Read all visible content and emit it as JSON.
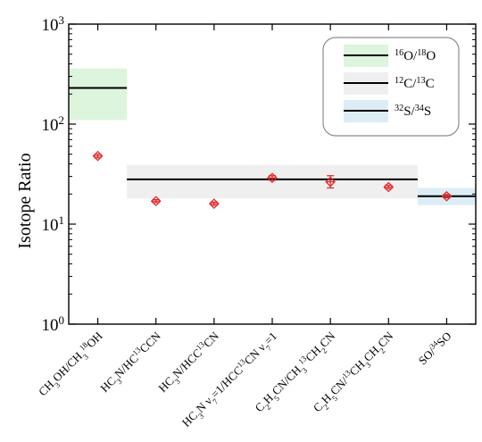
{
  "chart_data": {
    "type": "scatter",
    "title": "",
    "ylabel": "Isotope Ratio",
    "xlabel": "",
    "yscale": "log",
    "ylim": [
      1,
      1000
    ],
    "yticks": [
      {
        "value": 1,
        "base": "10",
        "exp": "0"
      },
      {
        "value": 10,
        "base": "10",
        "exp": "1"
      },
      {
        "value": 100,
        "base": "10",
        "exp": "2"
      },
      {
        "value": 1000,
        "base": "10",
        "exp": "3"
      }
    ],
    "categories": [
      [
        {
          "t": "CH"
        },
        {
          "t": "3",
          "s": "sub"
        },
        {
          "t": "OH/CH"
        },
        {
          "t": "3",
          "s": "sub"
        },
        {
          "t": "18",
          "s": "sup"
        },
        {
          "t": "OH"
        }
      ],
      [
        {
          "t": "HC"
        },
        {
          "t": "3",
          "s": "sub"
        },
        {
          "t": "N/HC"
        },
        {
          "t": "13",
          "s": "sup"
        },
        {
          "t": "CCN"
        }
      ],
      [
        {
          "t": "HC"
        },
        {
          "t": "3",
          "s": "sub"
        },
        {
          "t": "N/HCC"
        },
        {
          "t": "13",
          "s": "sup"
        },
        {
          "t": "CN"
        }
      ],
      [
        {
          "t": "HC"
        },
        {
          "t": "3",
          "s": "sub"
        },
        {
          "t": "N ν"
        },
        {
          "t": "7",
          "s": "sub"
        },
        {
          "t": "=1/HCC"
        },
        {
          "t": "13",
          "s": "sup"
        },
        {
          "t": "CN ν"
        },
        {
          "t": "7",
          "s": "sub"
        },
        {
          "t": "=1"
        }
      ],
      [
        {
          "t": "C"
        },
        {
          "t": "2",
          "s": "sub"
        },
        {
          "t": "H"
        },
        {
          "t": "5",
          "s": "sub"
        },
        {
          "t": "CN/CH"
        },
        {
          "t": "3",
          "s": "sub"
        },
        {
          "t": "13",
          "s": "sup"
        },
        {
          "t": "CH"
        },
        {
          "t": "2",
          "s": "sub"
        },
        {
          "t": "CN"
        }
      ],
      [
        {
          "t": "C"
        },
        {
          "t": "2",
          "s": "sub"
        },
        {
          "t": "H"
        },
        {
          "t": "5",
          "s": "sub"
        },
        {
          "t": "CN/"
        },
        {
          "t": "13",
          "s": "sup"
        },
        {
          "t": "CH"
        },
        {
          "t": "3",
          "s": "sub"
        },
        {
          "t": "CH"
        },
        {
          "t": "2",
          "s": "sub"
        },
        {
          "t": "CN"
        }
      ],
      [
        {
          "t": "SO/"
        },
        {
          "t": "34",
          "s": "sup"
        },
        {
          "t": "SO"
        }
      ]
    ],
    "points": [
      {
        "x": 0,
        "y": 48,
        "err": [
          46,
          50
        ]
      },
      {
        "x": 1,
        "y": 17,
        "err": [
          16.4,
          17.6
        ]
      },
      {
        "x": 2,
        "y": 16,
        "err": [
          15.4,
          16.6
        ]
      },
      {
        "x": 3,
        "y": 29,
        "err": [
          27.5,
          30.5
        ]
      },
      {
        "x": 4,
        "y": 26.5,
        "err": [
          23,
          30.5
        ]
      },
      {
        "x": 5,
        "y": 23.5,
        "err": [
          22.6,
          24.5
        ]
      },
      {
        "x": 6,
        "y": 19,
        "err": [
          18.3,
          19.8
        ]
      }
    ],
    "reference_ranges": [
      {
        "legend": [
          {
            "t": "16",
            "s": "sup"
          },
          {
            "t": "O/"
          },
          {
            "t": "18",
            "s": "sup"
          },
          {
            "t": "O"
          }
        ],
        "x_range": [
          -0.5,
          0.5
        ],
        "y": 230,
        "y_band": [
          110,
          360
        ],
        "color": "#dcf5dc"
      },
      {
        "legend": [
          {
            "t": "12",
            "s": "sup"
          },
          {
            "t": "C/"
          },
          {
            "t": "13",
            "s": "sup"
          },
          {
            "t": "C"
          }
        ],
        "x_range": [
          0.5,
          5.5
        ],
        "y": 28,
        "y_band": [
          18,
          39
        ],
        "color": "#efefef"
      },
      {
        "legend": [
          {
            "t": "32",
            "s": "sup"
          },
          {
            "t": "S/"
          },
          {
            "t": "34",
            "s": "sup"
          },
          {
            "t": "S"
          }
        ],
        "x_range": [
          5.5,
          6.5
        ],
        "y": 19,
        "y_band": [
          15.5,
          23
        ],
        "color": "#dcedf5"
      }
    ],
    "marker": {
      "shape": "diamond",
      "color": "#e32222"
    },
    "grid": false,
    "legend_position": "top-right"
  }
}
